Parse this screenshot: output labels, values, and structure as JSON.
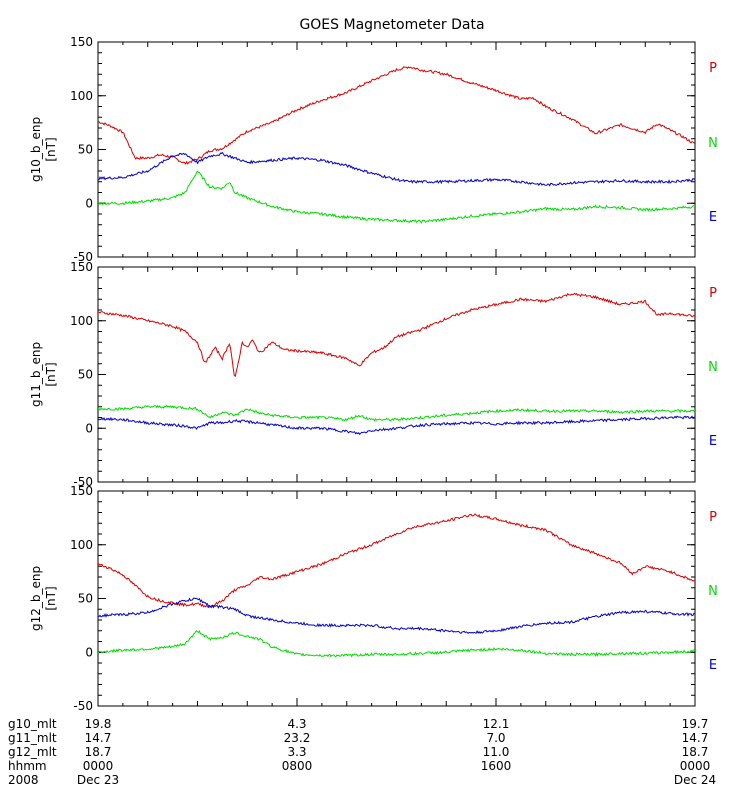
{
  "colors": {
    "P": "#dd0000",
    "N": "#00dd00",
    "E": "#0000cc"
  },
  "chart_data": {
    "type": "line",
    "title": "GOES Magnetometer Data",
    "xlim": [
      0,
      24
    ],
    "panels": [
      {
        "ylabel": "g10_b_enp",
        "yunit": "[nT]",
        "ylim": [
          -50,
          150
        ],
        "yticks": [
          -50,
          0,
          50,
          100,
          150
        ],
        "legend": [
          "P",
          "N",
          "E"
        ],
        "series": [
          {
            "name": "P",
            "x": [
              0,
              0.5,
              1,
              1.5,
              2,
              2.5,
              3,
              3.5,
              4,
              4.5,
              5,
              6,
              7,
              8,
              9,
              10,
              11,
              12,
              12.5,
              13,
              14,
              15,
              16,
              17,
              17.5,
              18,
              19,
              20,
              21,
              22,
              22.5,
              23,
              23.5,
              24
            ],
            "values": [
              76,
              72,
              66,
              42,
              42,
              45,
              43,
              37,
              41,
              49,
              51,
              67,
              75,
              87,
              96,
              103,
              114,
              124,
              127,
              124,
              120,
              112,
              105,
              97,
              98,
              90,
              79,
              65,
              73,
              66,
              74,
              68,
              62,
              55
            ]
          },
          {
            "name": "N",
            "x": [
              0,
              1,
              2,
              3,
              3.5,
              4,
              4.5,
              5,
              5.3,
              5.5,
              6,
              7,
              8,
              9,
              10,
              11,
              12,
              13,
              14,
              15,
              16,
              17,
              18,
              19,
              20,
              21,
              22,
              23,
              24
            ],
            "values": [
              0,
              0,
              2,
              5,
              10,
              30,
              15,
              14,
              20,
              10,
              5,
              -3,
              -8,
              -10,
              -13,
              -15,
              -16,
              -17,
              -15,
              -12,
              -10,
              -8,
              -5,
              -6,
              -3,
              -4,
              -6,
              -5,
              -3
            ]
          },
          {
            "name": "E",
            "x": [
              0,
              1,
              2,
              3,
              3.5,
              4,
              4.5,
              5,
              5.5,
              6,
              7,
              8,
              9,
              10,
              11,
              12,
              12.5,
              13,
              14,
              15,
              16,
              17,
              18,
              19,
              20,
              21,
              22,
              23,
              24
            ],
            "values": [
              23,
              24,
              30,
              44,
              46,
              38,
              44,
              46,
              42,
              38,
              40,
              42,
              40,
              35,
              28,
              22,
              20,
              20,
              20,
              21,
              22,
              20,
              17,
              19,
              20,
              21,
              20,
              20,
              22
            ]
          }
        ]
      },
      {
        "ylabel": "g11_b_enp",
        "yunit": "[nT]",
        "ylim": [
          -50,
          150
        ],
        "yticks": [
          -50,
          0,
          50,
          100,
          150
        ],
        "legend": [
          "P",
          "N",
          "E"
        ],
        "series": [
          {
            "name": "P",
            "x": [
              0,
              1,
              2,
              3,
              3.5,
              4,
              4.3,
              4.7,
              5,
              5.3,
              5.5,
              5.8,
              6,
              6.2,
              6.5,
              7,
              7.5,
              8,
              9,
              10,
              10.5,
              11,
              11.5,
              12,
              13,
              14,
              15,
              16,
              17,
              18,
              19,
              20,
              21,
              22,
              22.5,
              23,
              24
            ],
            "values": [
              108,
              105,
              100,
              95,
              90,
              80,
              60,
              75,
              65,
              80,
              45,
              80,
              75,
              82,
              70,
              80,
              73,
              72,
              70,
              65,
              58,
              70,
              75,
              85,
              92,
              102,
              110,
              115,
              120,
              118,
              125,
              122,
              115,
              118,
              105,
              107,
              104
            ]
          },
          {
            "name": "N",
            "x": [
              0,
              1,
              2,
              3,
              4,
              4.5,
              5,
              5.5,
              6,
              6.5,
              7,
              8,
              9,
              10,
              10.5,
              11,
              12,
              13,
              14,
              15,
              16,
              17,
              18,
              19,
              20,
              21,
              22,
              23,
              24
            ],
            "values": [
              18,
              18,
              20,
              20,
              18,
              10,
              15,
              12,
              18,
              14,
              12,
              10,
              10,
              8,
              12,
              8,
              8,
              10,
              12,
              14,
              16,
              17,
              16,
              16,
              16,
              15,
              16,
              16,
              16
            ]
          },
          {
            "name": "E",
            "x": [
              0,
              1,
              2,
              3,
              3.5,
              4,
              4.5,
              5,
              5.5,
              6,
              6.5,
              7,
              8,
              9,
              10,
              10.5,
              11,
              12,
              13,
              14,
              15,
              16,
              17,
              18,
              19,
              20,
              21,
              22,
              23,
              24
            ],
            "values": [
              9,
              8,
              5,
              3,
              2,
              0,
              5,
              5,
              7,
              6,
              5,
              3,
              0,
              0,
              -3,
              -5,
              -2,
              0,
              3,
              4,
              5,
              4,
              5,
              5,
              6,
              7,
              8,
              9,
              10,
              10
            ]
          }
        ]
      },
      {
        "ylabel": "g12_b_enp",
        "yunit": "[nT]",
        "ylim": [
          -50,
          150
        ],
        "yticks": [
          -50,
          0,
          50,
          100,
          150
        ],
        "legend": [
          "P",
          "N",
          "E"
        ],
        "series": [
          {
            "name": "P",
            "x": [
              0,
              0.5,
              1,
              1.5,
              2,
              2.5,
              3,
              3.5,
              4,
              4.5,
              5,
              5.5,
              6,
              6.5,
              7,
              8,
              9,
              10,
              11,
              12,
              12.5,
              13,
              14,
              15,
              16,
              17,
              18,
              19,
              20,
              21,
              21.5,
              22,
              23,
              24
            ],
            "values": [
              82,
              78,
              72,
              62,
              52,
              48,
              46,
              44,
              45,
              42,
              48,
              58,
              62,
              70,
              68,
              75,
              82,
              92,
              100,
              110,
              115,
              118,
              122,
              128,
              124,
              118,
              114,
              100,
              92,
              83,
              73,
              80,
              75,
              66
            ]
          },
          {
            "name": "N",
            "x": [
              0,
              1,
              2,
              3,
              3.5,
              4,
              4.5,
              5,
              5.5,
              6,
              6.5,
              7,
              8,
              9,
              10,
              11,
              12,
              13,
              14,
              15,
              16,
              17,
              18,
              19,
              20,
              21,
              22,
              23,
              24
            ],
            "values": [
              0,
              2,
              3,
              5,
              8,
              20,
              12,
              14,
              18,
              15,
              12,
              5,
              -2,
              -3,
              -3,
              -2,
              -2,
              -1,
              0,
              2,
              3,
              2,
              -1,
              -2,
              -2,
              -1,
              -1,
              0,
              1
            ]
          },
          {
            "name": "E",
            "x": [
              0,
              1,
              2,
              3,
              3.5,
              4,
              4.5,
              5,
              5.5,
              6,
              7,
              8,
              9,
              10,
              11,
              12,
              13,
              14,
              15,
              16,
              17,
              18,
              19,
              20,
              21,
              22,
              23,
              24
            ],
            "values": [
              34,
              35,
              37,
              45,
              48,
              50,
              43,
              42,
              40,
              34,
              30,
              27,
              25,
              25,
              25,
              22,
              22,
              20,
              18,
              20,
              24,
              27,
              28,
              33,
              37,
              38,
              36,
              35
            ]
          }
        ]
      }
    ]
  },
  "footer": {
    "row_labels": [
      "g10_mlt",
      "g11_mlt",
      "g12_mlt",
      "hhmm",
      "2008"
    ],
    "columns": [
      {
        "values": [
          "19.8",
          "14.7",
          "18.7",
          "0000",
          "Dec 23"
        ]
      },
      {
        "values": [
          "4.3",
          "23.2",
          "3.3",
          "0800",
          ""
        ]
      },
      {
        "values": [
          "12.1",
          "7.0",
          "11.0",
          "1600",
          ""
        ]
      },
      {
        "values": [
          "19.7",
          "14.7",
          "18.7",
          "0000",
          "Dec 24"
        ]
      }
    ]
  }
}
